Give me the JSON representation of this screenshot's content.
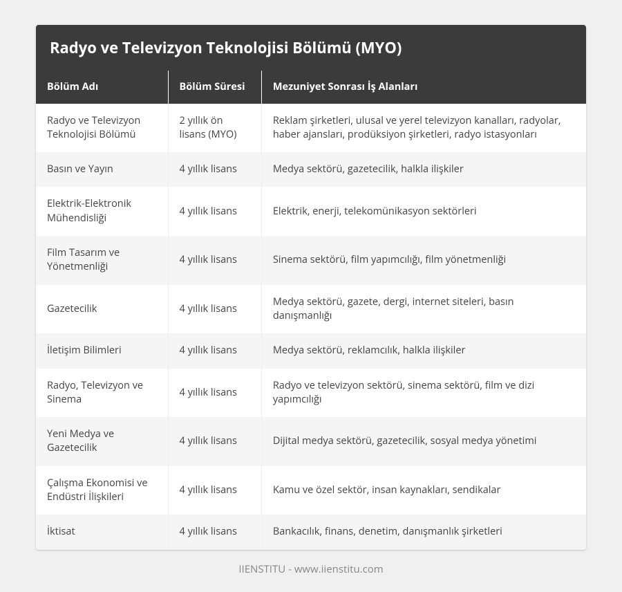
{
  "title": "Radyo ve Televizyon Teknolojisi Bölümü (MYO)",
  "columns": [
    "Bölüm Adı",
    "Bölüm Süresi",
    "Mezuniyet Sonrası İş Alanları"
  ],
  "rows": [
    {
      "name": "Radyo ve Televizyon Teknolojisi Bölümü",
      "dur": "2 yıllık ön lisans (MYO)",
      "job": "Reklam şirketleri, ulusal ve yerel televizyon kanalları, radyolar, haber ajansları, prodüksiyon şirketleri, radyo istasyonları"
    },
    {
      "name": "Basın ve Yayın",
      "dur": "4 yıllık lisans",
      "job": "Medya sektörü, gazetecilik, halkla ilişkiler"
    },
    {
      "name": "Elektrik-Elektronik Mühendisliği",
      "dur": "4 yıllık lisans",
      "job": "Elektrik, enerji, telekomünikasyon sektörleri"
    },
    {
      "name": "Film Tasarım ve Yönetmenliği",
      "dur": "4 yıllık lisans",
      "job": "Sinema sektörü, film yapımcılığı, film yönetmenliği"
    },
    {
      "name": "Gazetecilik",
      "dur": "4 yıllık lisans",
      "job": "Medya sektörü, gazete, dergi, internet siteleri, basın danışmanlığı"
    },
    {
      "name": "İletişim Bilimleri",
      "dur": "4 yıllık lisans",
      "job": "Medya sektörü, reklamcılık, halkla ilişkiler"
    },
    {
      "name": "Radyo, Televizyon ve Sinema",
      "dur": "4 yıllık lisans",
      "job": "Radyo ve televizyon sektörü, sinema sektörü, film ve dizi yapımcılığı"
    },
    {
      "name": "Yeni Medya ve Gazetecilik",
      "dur": "4 yıllık lisans",
      "job": "Dijital medya sektörü, gazetecilik, sosyal medya yönetimi"
    },
    {
      "name": "Çalışma Ekonomisi ve Endüstri İlişkileri",
      "dur": "4 yıllık lisans",
      "job": "Kamu ve özel sektör, insan kaynakları, sendikalar"
    },
    {
      "name": "İktisat",
      "dur": "4 yıllık lisans",
      "job": "Bankacılık, finans, denetim, danışmanlık şirketleri"
    }
  ],
  "footer": "IIENSTITU - www.iienstitu.com",
  "styles": {
    "page_bg": "#f0f0f0",
    "card_bg": "#ffffff",
    "header_bg": "#3b3b3b",
    "header_color": "#ffffff",
    "row_odd_bg": "#ffffff",
    "row_even_bg": "#f5f5f5",
    "cell_border": "#eeeeee",
    "text_color": "#444444",
    "footer_color": "#888888",
    "title_fontsize": 22,
    "header_fontsize": 14.5,
    "cell_fontsize": 14.5,
    "footer_fontsize": 15
  }
}
